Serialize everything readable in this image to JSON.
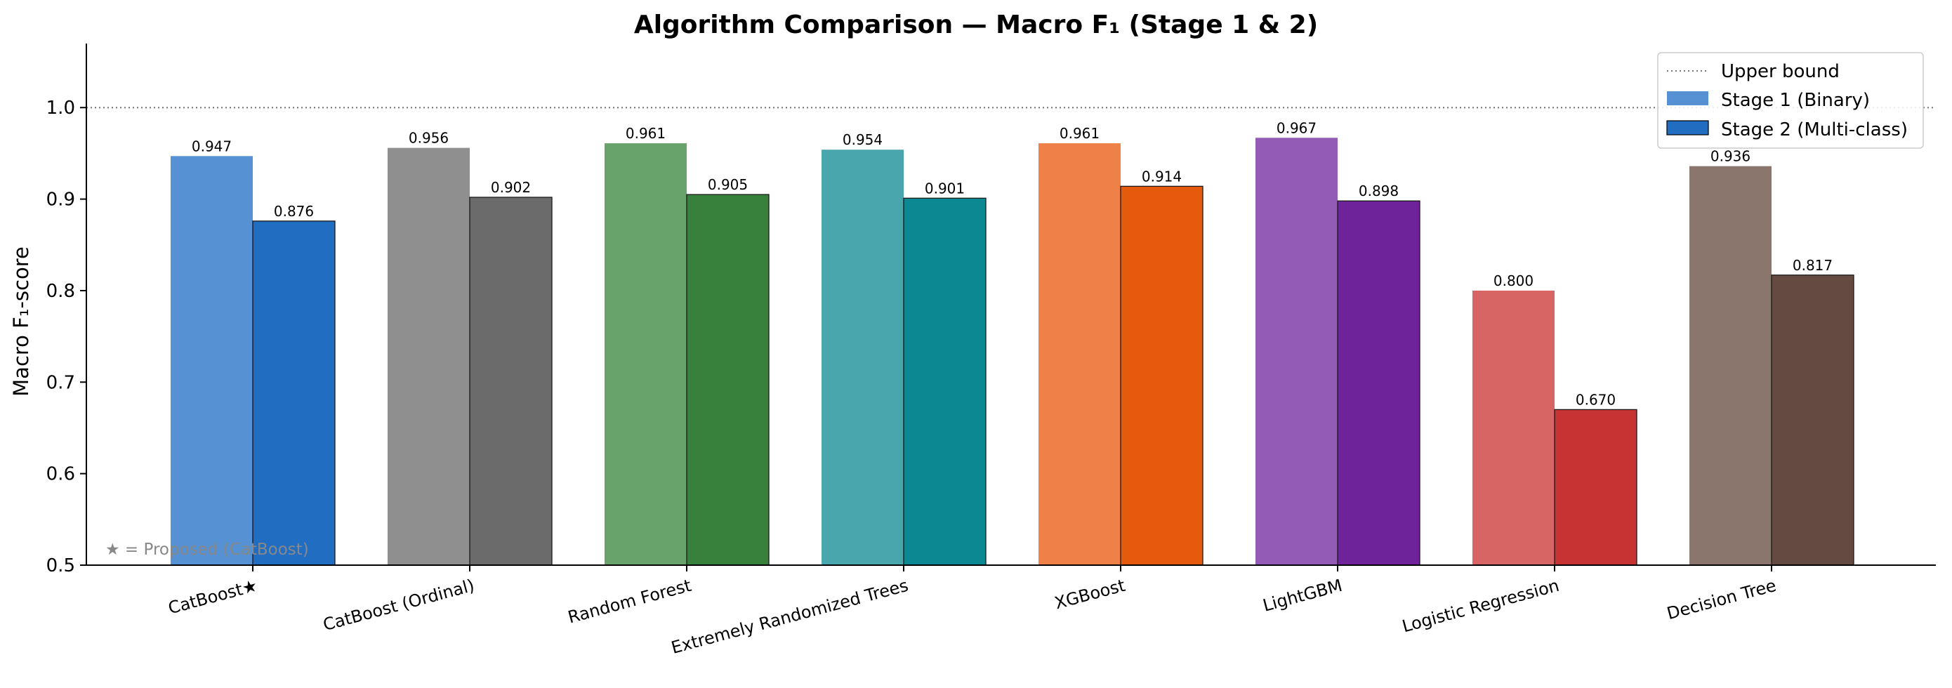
{
  "chart_data": {
    "type": "bar",
    "title": "Algorithm Comparison — Macro F₁ (Stage 1 & 2)",
    "xlabel": "",
    "ylabel": "Macro F₁-score",
    "ylim": [
      0.5,
      1.07
    ],
    "yticks": [
      "0.5",
      "0.6",
      "0.7",
      "0.8",
      "0.9",
      "1.0"
    ],
    "categories": [
      "CatBoost★",
      "CatBoost (Ordinal)",
      "Random Forest",
      "Extremely Randomized Trees",
      "XGBoost",
      "LightGBM",
      "Logistic Regression",
      "Decision Tree"
    ],
    "series": [
      {
        "name": "Stage 1 (Binary)",
        "values": [
          0.947,
          0.956,
          0.961,
          0.954,
          0.961,
          0.967,
          0.8,
          0.936
        ],
        "labels": [
          "0.947",
          "0.956",
          "0.961",
          "0.954",
          "0.961",
          "0.967",
          "0.800",
          "0.936"
        ],
        "colors": [
          "#5591d3",
          "#8f8f8f",
          "#68a36b",
          "#48a6ac",
          "#ef8148",
          "#935bb5",
          "#d66563",
          "#8b766e"
        ],
        "legend_color": "#5591d3"
      },
      {
        "name": "Stage 2 (Multi-class)",
        "values": [
          0.876,
          0.902,
          0.905,
          0.901,
          0.914,
          0.898,
          0.67,
          0.817
        ],
        "labels": [
          "0.876",
          "0.902",
          "0.905",
          "0.901",
          "0.914",
          "0.898",
          "0.670",
          "0.817"
        ],
        "colors": [
          "#206dc2",
          "#6b6b6b",
          "#37813d",
          "#0b8891",
          "#e65a0d",
          "#6f239b",
          "#c73232",
          "#644a40"
        ],
        "legend_color": "#206dc2"
      }
    ],
    "reference_line": {
      "name": "Upper bound",
      "value": 1.0,
      "style": "dotted",
      "color": "#777777"
    },
    "legend": {
      "placement": "top-right"
    },
    "grid": false,
    "annotation": "★ = Proposed (CatBoost)"
  }
}
